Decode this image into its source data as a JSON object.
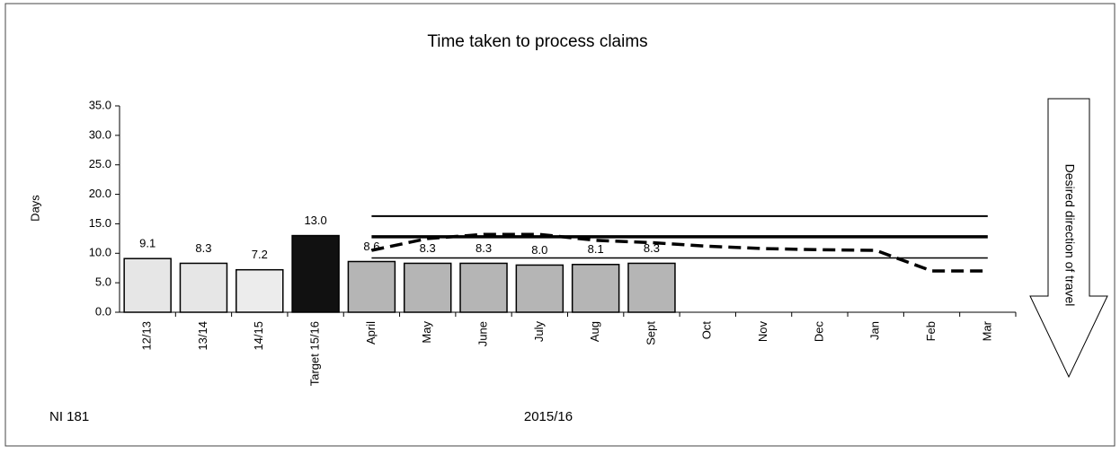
{
  "chart_data": {
    "type": "bar",
    "title": "Time taken to process claims",
    "y_label": "Days",
    "x_label": "2015/16",
    "note": "NI 181",
    "arrow_label": "Desired direction of travel",
    "categories": [
      "12/13",
      "13/14",
      "14/15",
      "Target 15/16",
      "April",
      "May",
      "June",
      "July",
      "Aug",
      "Sept",
      "Oct",
      "Nov",
      "Dec",
      "Jan",
      "Feb",
      "Mar"
    ],
    "values": [
      9.1,
      8.3,
      7.2,
      13.0,
      8.6,
      8.3,
      8.3,
      8.0,
      8.1,
      8.3,
      null,
      null,
      null,
      null,
      null,
      null
    ],
    "value_labels": [
      "9.1",
      "8.3",
      "7.2",
      "13.0",
      "8.6",
      "8.3",
      "8.3",
      "8.0",
      "8.1",
      "8.3",
      null,
      null,
      null,
      null,
      null,
      null
    ],
    "colors": [
      "#e6e6e6",
      "#e6e6e6",
      "#ececec",
      "#111111",
      "#b5b5b5",
      "#b5b5b5",
      "#b5b5b5",
      "#b5b5b5",
      "#b5b5b5",
      "#b5b5b5",
      null,
      null,
      null,
      null,
      null,
      null
    ],
    "lines": [
      {
        "color": "#000000",
        "style": "solid",
        "width": 2,
        "values": [
          null,
          null,
          null,
          null,
          16.3,
          16.3,
          16.3,
          16.3,
          16.3,
          16.3,
          16.3,
          16.3,
          16.3,
          16.3,
          16.3,
          16.3
        ]
      },
      {
        "color": "#000000",
        "style": "solid",
        "width": 3.5,
        "values": [
          null,
          null,
          null,
          null,
          12.8,
          12.8,
          12.8,
          12.8,
          12.8,
          12.8,
          12.8,
          12.8,
          12.8,
          12.8,
          12.8,
          12.8
        ]
      },
      {
        "color": "#000000",
        "style": "solid",
        "width": 1.5,
        "values": [
          null,
          null,
          null,
          null,
          9.2,
          9.2,
          9.2,
          9.2,
          9.2,
          9.2,
          9.2,
          9.2,
          9.2,
          9.2,
          9.2,
          9.2
        ]
      },
      {
        "color": "#000000",
        "style": "dashed",
        "width": 3.5,
        "values": [
          null,
          null,
          null,
          null,
          10.5,
          12.5,
          13.2,
          13.2,
          12.2,
          11.8,
          11.2,
          10.8,
          10.6,
          10.5,
          7.0,
          7.0
        ]
      }
    ],
    "ylim": [
      0,
      35
    ],
    "yticks": [
      {
        "value": 0,
        "label": "0.0"
      },
      {
        "value": 5,
        "label": "5.0"
      },
      {
        "value": 10,
        "label": "10.0"
      },
      {
        "value": 15,
        "label": "15.0"
      },
      {
        "value": 20,
        "label": "20.0"
      },
      {
        "value": 25,
        "label": "25.0"
      },
      {
        "value": 30,
        "label": "30.0"
      },
      {
        "value": 35,
        "label": "35.0"
      }
    ]
  }
}
